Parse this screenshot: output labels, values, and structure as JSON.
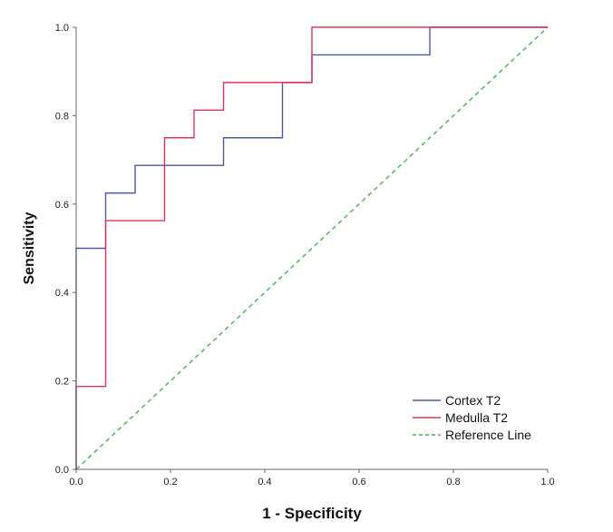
{
  "chart_data": {
    "type": "line",
    "title": "",
    "xlabel": "1 - Specificity",
    "ylabel": "Sensitivity",
    "xlim": [
      0,
      1
    ],
    "ylim": [
      0,
      1
    ],
    "xticks": [
      "0.0",
      "0.2",
      "0.4",
      "0.6",
      "0.8",
      "1.0"
    ],
    "yticks": [
      "0.0",
      "0.2",
      "0.4",
      "0.6",
      "0.8",
      "1.0"
    ],
    "legend_position": "bottom-right",
    "series": [
      {
        "name": "Cortex T2",
        "color": "#4a5a9a",
        "dash": "solid",
        "x": [
          0.0,
          0.0,
          0.0625,
          0.0625,
          0.125,
          0.125,
          0.3125,
          0.3125,
          0.4375,
          0.4375,
          0.5,
          0.5,
          0.75,
          0.75,
          1.0
        ],
        "y": [
          0.0,
          0.5,
          0.5,
          0.625,
          0.625,
          0.6875,
          0.6875,
          0.75,
          0.75,
          0.875,
          0.875,
          0.9375,
          0.9375,
          1.0,
          1.0
        ]
      },
      {
        "name": "Medulla T2",
        "color": "#e0355a",
        "dash": "solid",
        "x": [
          0.0,
          0.0,
          0.0625,
          0.0625,
          0.1875,
          0.1875,
          0.25,
          0.25,
          0.3125,
          0.3125,
          0.5,
          0.5,
          1.0
        ],
        "y": [
          0.0,
          0.1875,
          0.1875,
          0.5625,
          0.5625,
          0.75,
          0.75,
          0.8125,
          0.8125,
          0.875,
          0.875,
          1.0,
          1.0
        ]
      },
      {
        "name": "Reference Line",
        "color": "#4caf50",
        "dash": "dashed",
        "x": [
          0.0,
          1.0
        ],
        "y": [
          0.0,
          1.0
        ]
      }
    ]
  }
}
